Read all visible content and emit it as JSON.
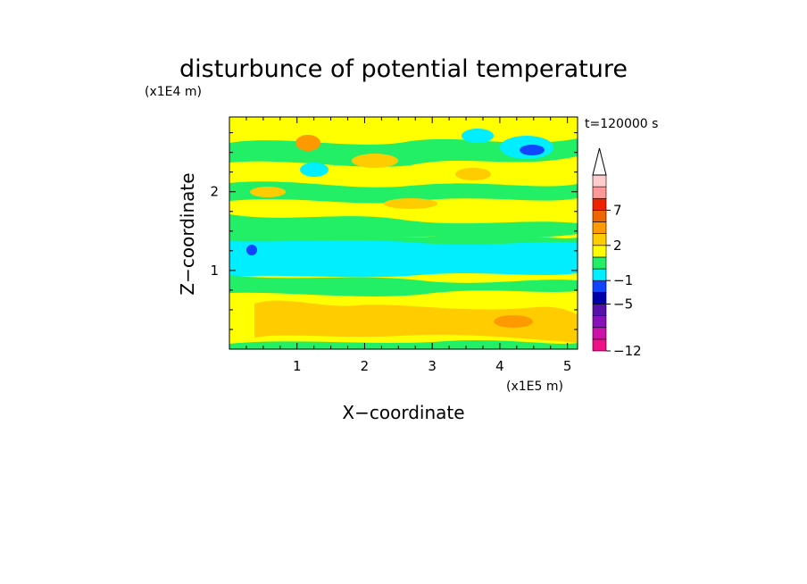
{
  "chart_data": {
    "type": "heatmap",
    "title": "disturbunce of potential temperature",
    "xlabel": "X−coordinate",
    "ylabel": "Z−coordinate",
    "x_scale_label": "(x1E5 m)",
    "y_scale_label": "(x1E4 m)",
    "time_label": "t=120000 s",
    "xlim": [
      0,
      5.15
    ],
    "ylim": [
      0,
      2.95
    ],
    "x_ticks": [
      "1",
      "2",
      "3",
      "4",
      "5"
    ],
    "y_ticks": [
      "1",
      "2"
    ],
    "colorbar": {
      "tick_labels": [
        "7",
        "2",
        "−1",
        "−5",
        "−12"
      ],
      "colors": [
        "#ee1188",
        "#cc11aa",
        "#8811bb",
        "#5511aa",
        "#0000aa",
        "#1144ff",
        "#00eeff",
        "#22ee66",
        "#ffff00",
        "#ffcc00",
        "#ff9900",
        "#ee6600",
        "#ee2200",
        "#ff9999",
        "#ffcccc"
      ]
    },
    "field_bands": [
      {
        "z_from": 0.0,
        "z_to": 0.15,
        "level": "slightly positive"
      },
      {
        "z_from": 0.15,
        "z_to": 0.9,
        "level": "positive (yellow/orange)"
      },
      {
        "z_from": 0.9,
        "z_to": 1.45,
        "level": "negative (cyan)"
      },
      {
        "z_from": 1.45,
        "z_to": 2.95,
        "level": "mixed positive and near zero (yellow/green)"
      }
    ],
    "anomalies": [
      {
        "x": 4.45,
        "z": 2.5,
        "level": "strongly negative (blue)"
      },
      {
        "x": 0.35,
        "z": 1.3,
        "level": "strongly negative (blue)"
      },
      {
        "x": 1.1,
        "z": 2.65,
        "level": "positive (orange)"
      }
    ]
  }
}
